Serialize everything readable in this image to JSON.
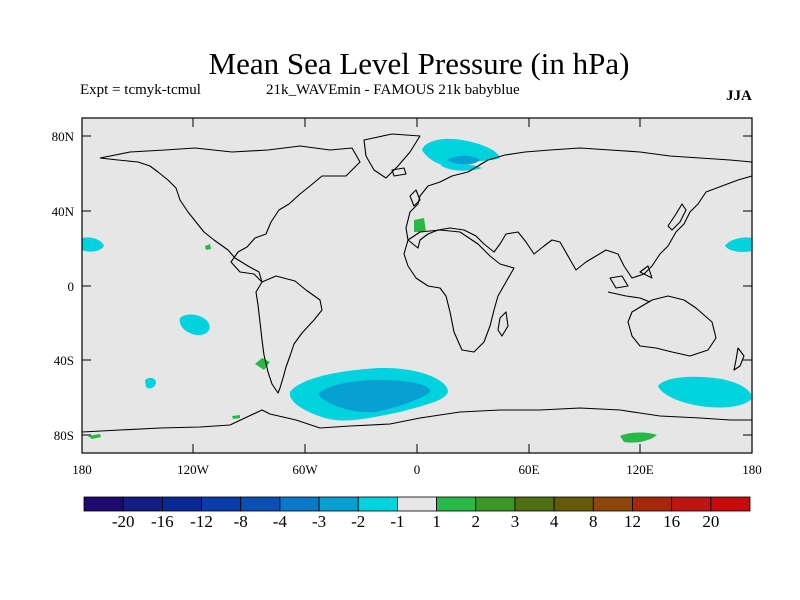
{
  "title": "Mean Sea Level Pressure (in hPa)",
  "experiment": "Expt = tcmyk-tcmul",
  "subtitle": "21k_WAVEmin - FAMOUS 21k babyblue",
  "season": "JJA",
  "axes": {
    "lat_labels": [
      "80N",
      "40N",
      "0",
      "40S",
      "80S"
    ],
    "lon_labels": [
      "180",
      "120W",
      "60W",
      "0",
      "60E",
      "120E",
      "180"
    ]
  },
  "map": {
    "projection": "cylindrical equidistant",
    "lon_range": [
      -180,
      180
    ],
    "lat_range": [
      -90,
      90
    ],
    "land_fill": "#e6e6e6",
    "coastline_color": "#000000",
    "anomaly_regions": [
      {
        "region": "north-atlantic-norwegian-sea",
        "class": "-2",
        "color": "#00d2de"
      },
      {
        "region": "scandinavia-barents",
        "class": "-3",
        "color": "#08a0d2"
      },
      {
        "region": "north-pacific-west",
        "class": "-2",
        "color": "#00d2de"
      },
      {
        "region": "north-pacific-east",
        "class": "-2",
        "color": "#00d2de"
      },
      {
        "region": "south-pacific-tropical",
        "class": "-2",
        "color": "#00d2de"
      },
      {
        "region": "south-pacific-midlat",
        "class": "-2",
        "color": "#00d2de"
      },
      {
        "region": "south-atlantic",
        "class": "-2",
        "color": "#00d2de"
      },
      {
        "region": "south-atlantic-core",
        "class": "-3",
        "color": "#08a0d2"
      },
      {
        "region": "southern-indian-ocean",
        "class": "-2",
        "color": "#00d2de"
      },
      {
        "region": "north-africa",
        "class": "2",
        "color": "#28b848"
      },
      {
        "region": "southeast-pacific",
        "class": "2",
        "color": "#28b848"
      },
      {
        "region": "antarctic-indian",
        "class": "2",
        "color": "#28b848"
      }
    ]
  },
  "colorbar": {
    "labels": [
      "-20",
      "-16",
      "-12",
      "-8",
      "-4",
      "-3",
      "-2",
      "-1",
      "1",
      "2",
      "3",
      "4",
      "8",
      "12",
      "16",
      "20"
    ],
    "colors": [
      "#1e0a6e",
      "#141e82",
      "#0a2896",
      "#0a3caa",
      "#0a50b4",
      "#0a78c8",
      "#08a0d2",
      "#00d2de",
      "#e6e6e6",
      "#28b848",
      "#3c9628",
      "#506e14",
      "#645a0a",
      "#8c460a",
      "#a5280a",
      "#be1414",
      "#c80a0a"
    ]
  }
}
